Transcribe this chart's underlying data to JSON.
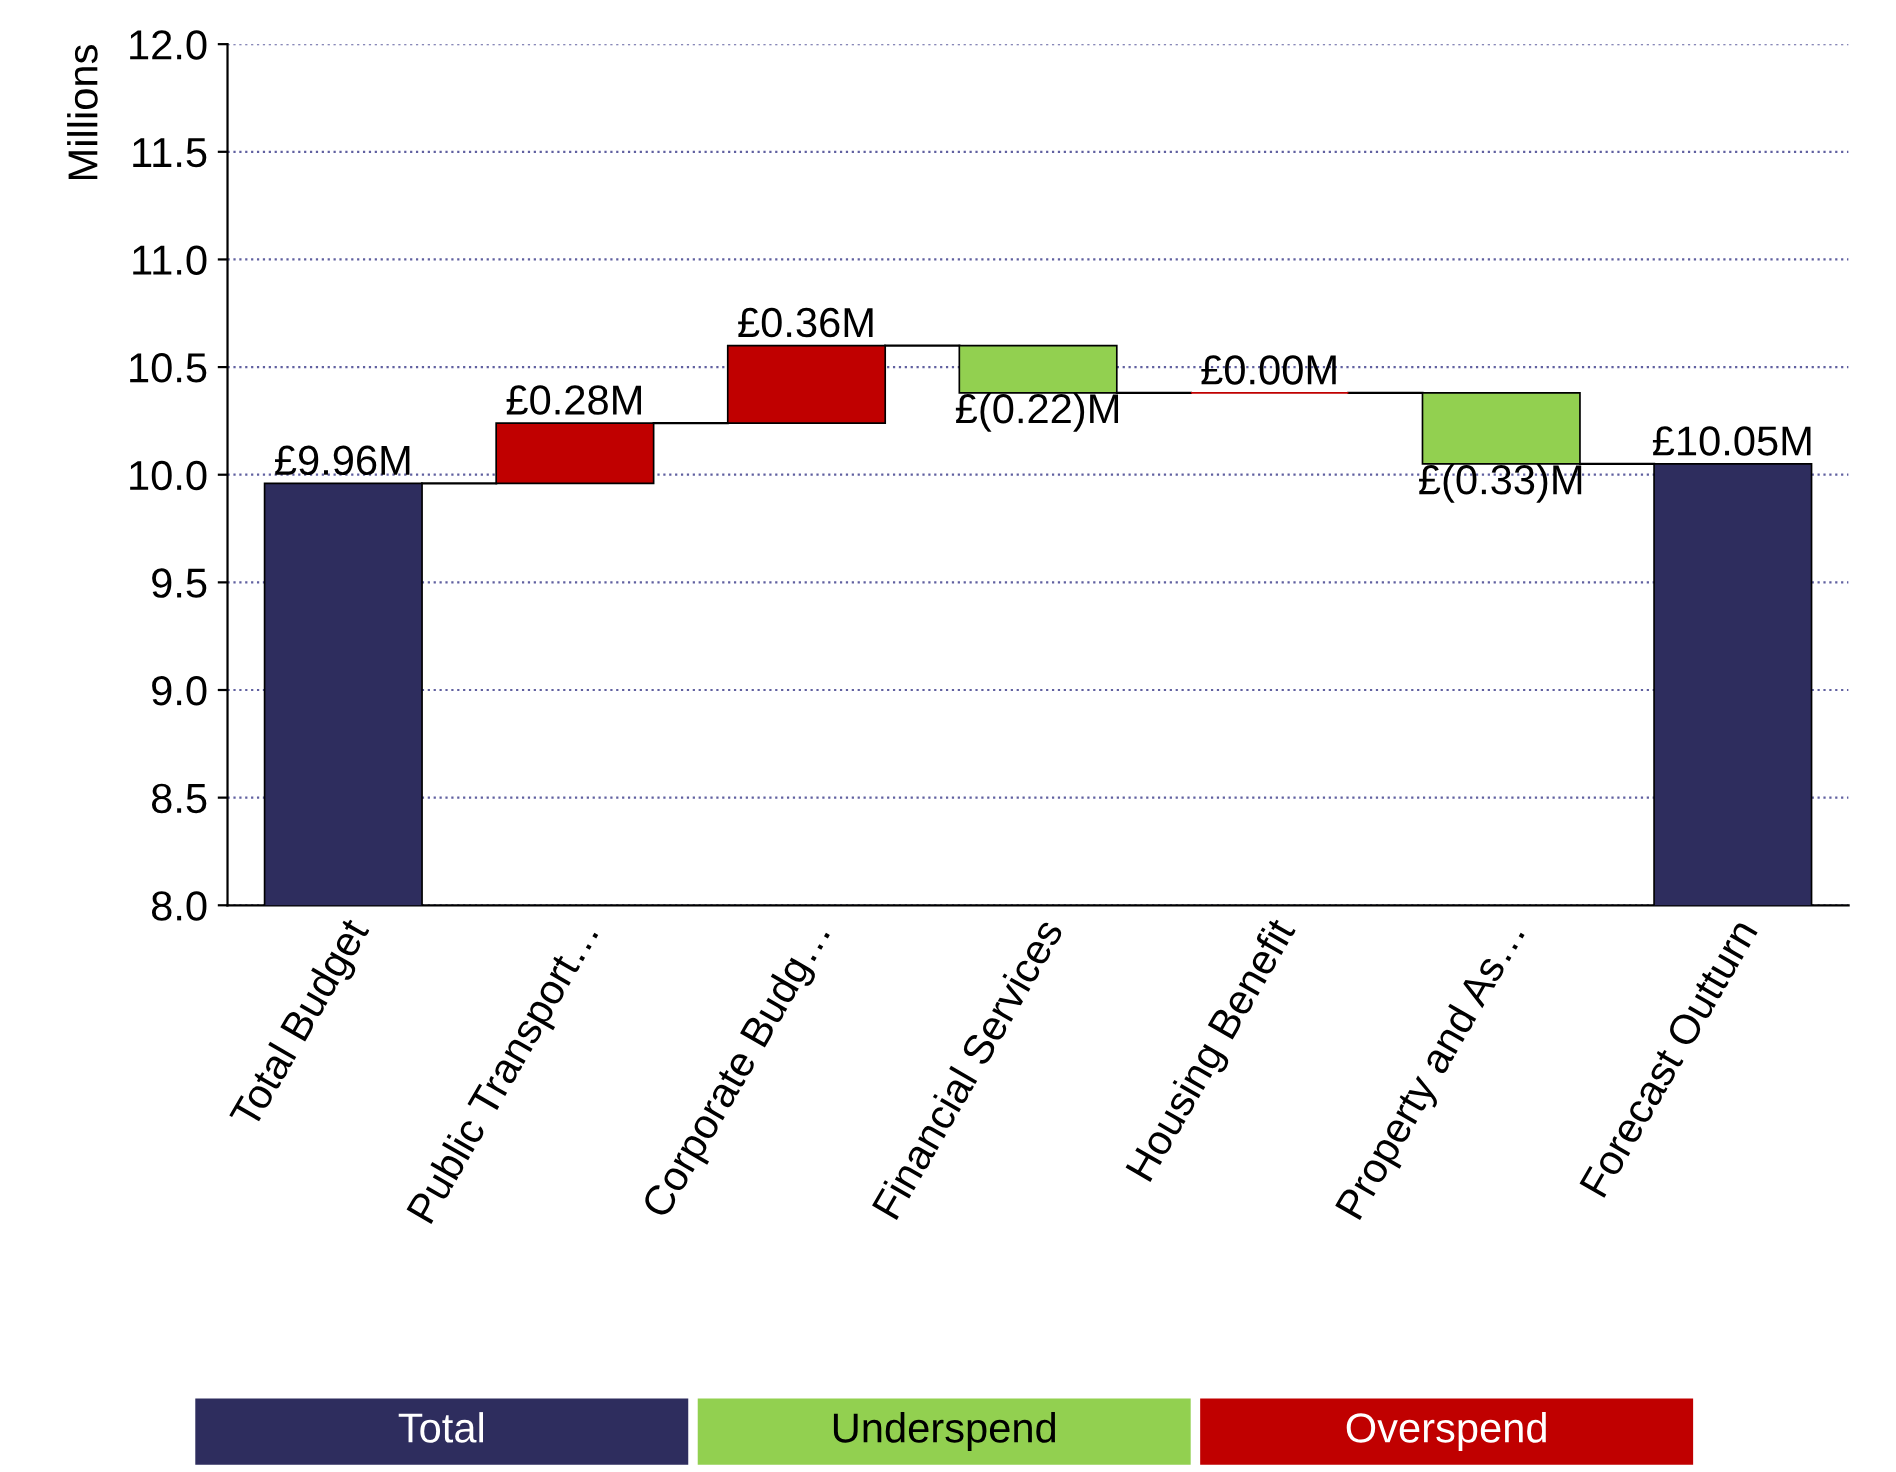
{
  "chart_data": {
    "type": "bar",
    "ylabel": "Millions",
    "categories": [
      "Total Budget",
      "Public Transport…",
      "Corporate Budg…",
      "Financial Services",
      "Housing Benefit",
      "Property and As…",
      "Forecast Outturn"
    ],
    "series": [
      {
        "name": "Total",
        "color": "#2e2d5e",
        "values": [
          9.96,
          null,
          null,
          null,
          null,
          null,
          10.05
        ]
      },
      {
        "name": "Underspend",
        "color": "#92d050",
        "values": [
          null,
          null,
          null,
          -0.22,
          null,
          -0.33,
          null
        ],
        "base": [
          null,
          null,
          null,
          10.6,
          null,
          10.38,
          null
        ]
      },
      {
        "name": "Overspend",
        "color": "#c00000",
        "values": [
          null,
          0.28,
          0.36,
          null,
          0.0,
          null,
          null
        ],
        "base": [
          null,
          9.96,
          10.24,
          null,
          10.38,
          null,
          null
        ]
      }
    ],
    "value_labels": [
      "£9.96M",
      "£0.28M",
      "£0.36M",
      "£(0.22)M",
      "£0.00M",
      "£(0.33)M",
      "£10.05M"
    ],
    "ylim": [
      8,
      12
    ],
    "yticks": [
      {
        "value": 8,
        "label": "8.0"
      },
      {
        "value": 8.5,
        "label": "8.5"
      },
      {
        "value": 9,
        "label": "9.0"
      },
      {
        "value": 9.5,
        "label": "9.5"
      },
      {
        "value": 10,
        "label": "10.0"
      },
      {
        "value": 10.5,
        "label": "10.5"
      },
      {
        "value": 11,
        "label": "11.0"
      },
      {
        "value": 11.5,
        "label": "11.5"
      },
      {
        "value": 12,
        "label": "12.0"
      }
    ],
    "grid": "y",
    "legend": "bottom"
  }
}
